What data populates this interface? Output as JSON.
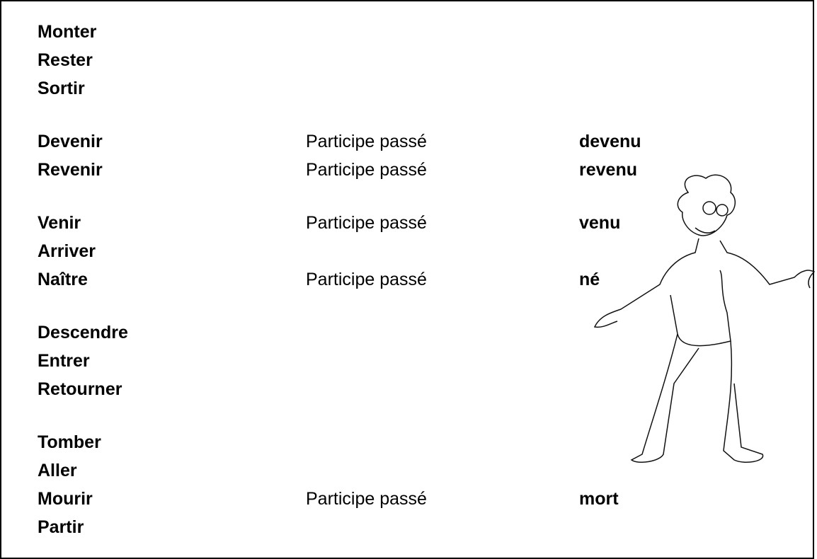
{
  "groups": [
    {
      "rows": [
        {
          "verb": "Monter"
        },
        {
          "verb": "Rester"
        },
        {
          "verb": "Sortir"
        }
      ]
    },
    {
      "rows": [
        {
          "verb": "Devenir",
          "label": "Participe passé",
          "participle": "devenu"
        },
        {
          "verb": "Revenir",
          "label": "Participe passé",
          "participle": "revenu"
        }
      ]
    },
    {
      "rows": [
        {
          "verb": "Venir",
          "label": "Participe passé",
          "participle": "venu"
        },
        {
          "verb": "Arriver"
        },
        {
          "verb": "Naître",
          "label": "Participe passé",
          "participle": "né"
        }
      ]
    },
    {
      "rows": [
        {
          "verb": "Descendre"
        },
        {
          "verb": "Entrer"
        },
        {
          "verb": "Retourner"
        }
      ]
    },
    {
      "rows": [
        {
          "verb": "Tomber"
        },
        {
          "verb": "Aller"
        },
        {
          "verb": "Mourir",
          "label": "Participe passé",
          "participle": "mort"
        },
        {
          "verb": "Partir"
        }
      ]
    }
  ]
}
